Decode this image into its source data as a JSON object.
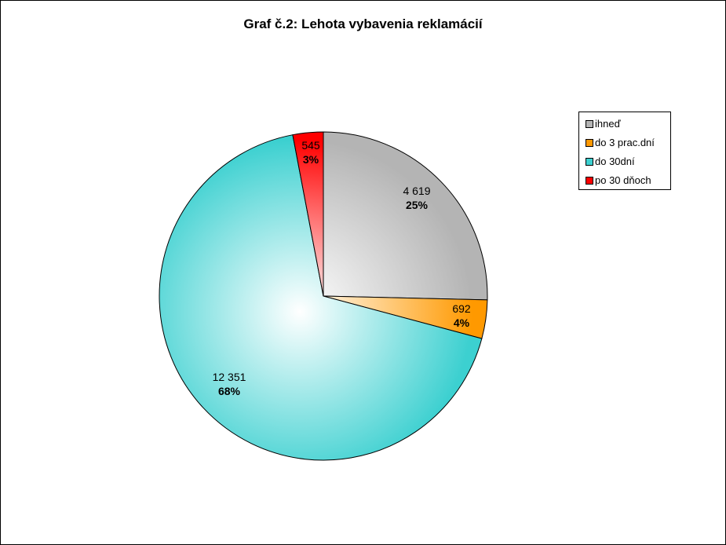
{
  "chart_data": {
    "type": "pie",
    "title": "Graf č.2: Lehota vybavenia reklamácií",
    "categories": [
      "ihneď",
      "do 3 prac.dní",
      "do 30dní",
      "po 30 dňoch"
    ],
    "values": [
      4619,
      692,
      12351,
      545
    ],
    "value_labels": [
      "4 619",
      "692",
      "12 351",
      "545"
    ],
    "percent_labels": [
      "25%",
      "4%",
      "68%",
      "3%"
    ],
    "colors": [
      "#b4b4b4",
      "#ff9900",
      "#3cd0d0",
      "#ff0000"
    ],
    "legend_position": "right"
  }
}
